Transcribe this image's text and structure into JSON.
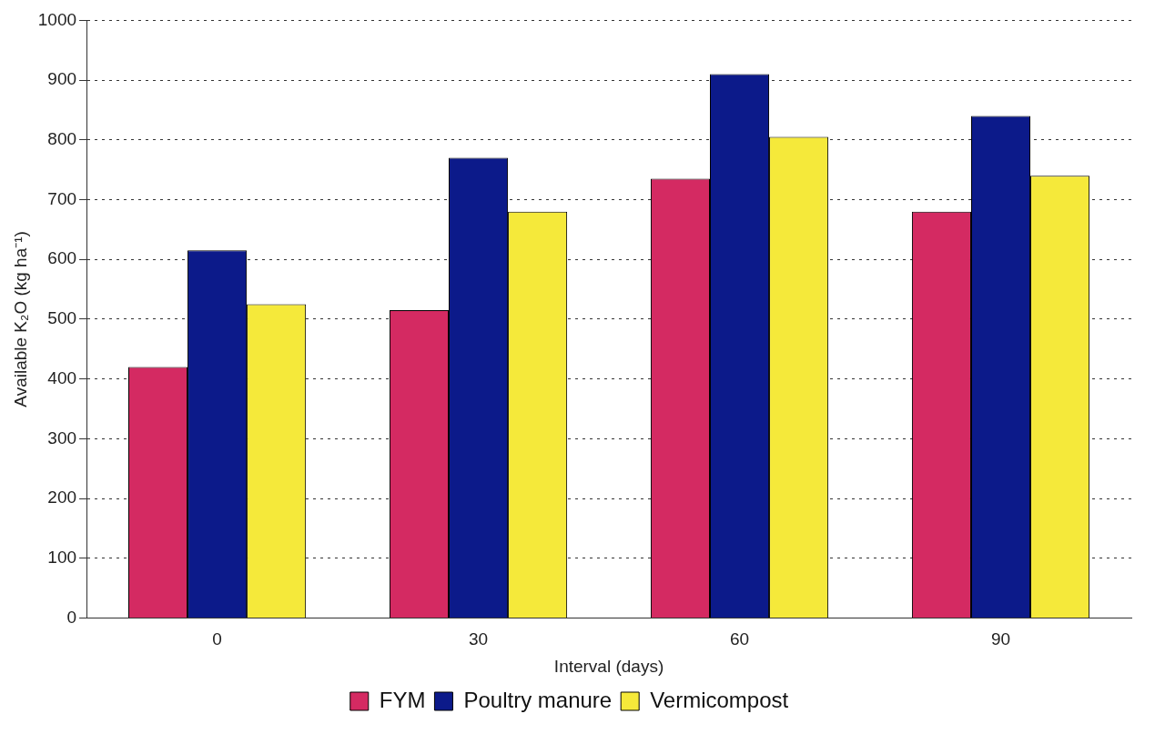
{
  "chart_data": {
    "type": "bar",
    "xlabel": "Interval (days)",
    "ylabel": "Available K₂O (kg ha⁻¹)",
    "categories": [
      "0",
      "30",
      "60",
      "90"
    ],
    "series": [
      {
        "name": "FYM",
        "color": "#d42a62",
        "values": [
          420,
          515,
          735,
          680
        ]
      },
      {
        "name": "Poultry manure",
        "color": "#0c1a8a",
        "values": [
          615,
          770,
          910,
          840
        ]
      },
      {
        "name": "Vermicompost",
        "color": "#f5e93a",
        "values": [
          525,
          680,
          805,
          740
        ]
      }
    ],
    "ylim": [
      0,
      1000
    ],
    "yticks": [
      0,
      100,
      200,
      300,
      400,
      500,
      600,
      700,
      800,
      900,
      1000
    ],
    "grid": "y",
    "legend": "bottom"
  }
}
